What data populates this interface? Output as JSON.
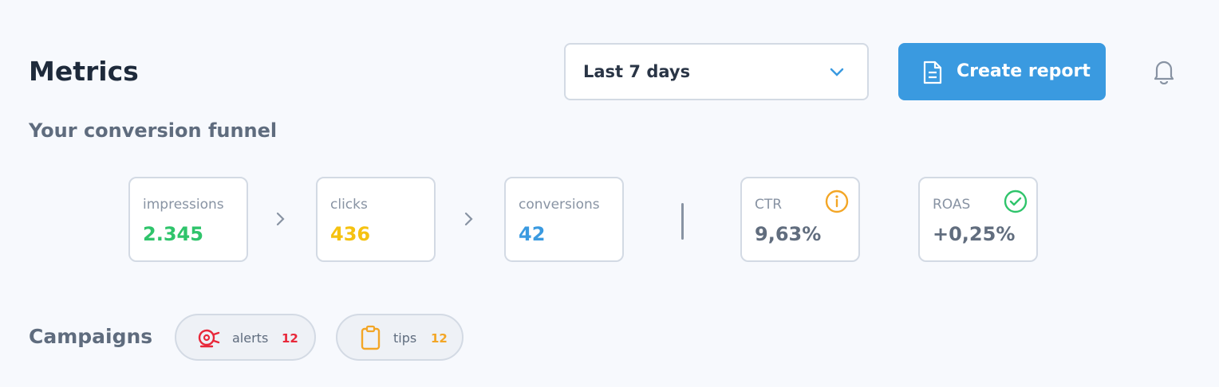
{
  "header": {
    "title": "Metrics",
    "date_range": "Last 7 days",
    "action": "Create report"
  },
  "funnel": {
    "title": "Your conversion funnel",
    "steps": [
      {
        "label": "impressions",
        "value": "2.345"
      },
      {
        "label": "clicks",
        "value": "436"
      },
      {
        "label": "conversions",
        "value": "42"
      }
    ],
    "ratios": [
      {
        "label": "CTR",
        "value": "9,63%"
      },
      {
        "label": "ROAS",
        "value": "+0,25%"
      }
    ]
  },
  "campaigns": {
    "title": "Campaigns",
    "chips": [
      {
        "label": "alerts",
        "count": 12
      },
      {
        "label": "tips",
        "count": 12
      }
    ]
  }
}
